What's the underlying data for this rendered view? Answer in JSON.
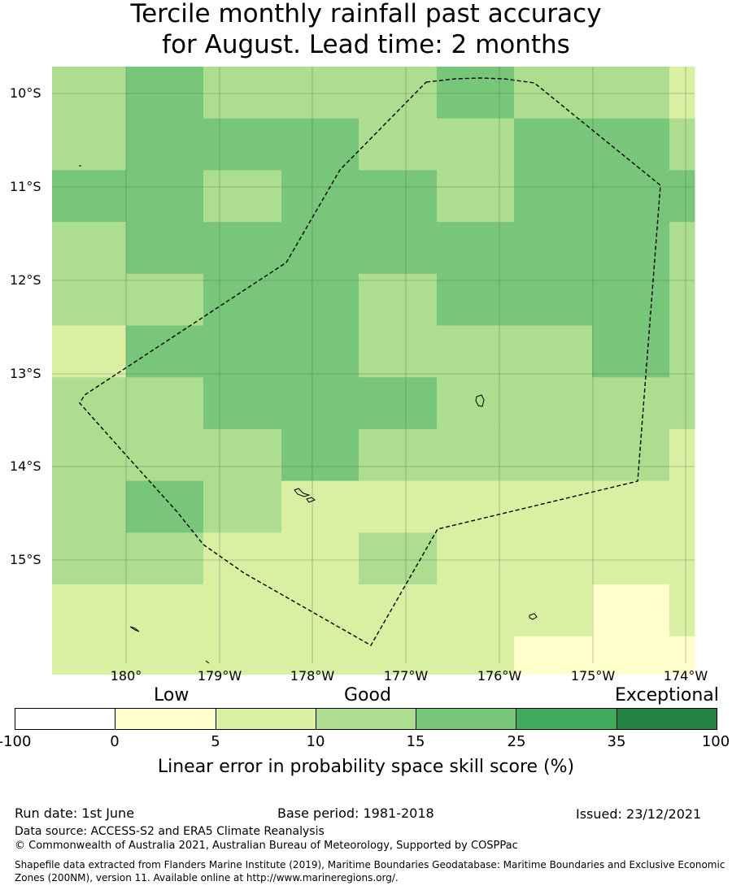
{
  "title": {
    "line1": "Tercile monthly rainfall past accuracy",
    "line2": "for August. Lead time: 2 months"
  },
  "map": {
    "lat_labels": [
      "10°S",
      "11°S",
      "12°S",
      "13°S",
      "14°S",
      "15°S"
    ],
    "lon_labels": [
      "180°",
      "179°W",
      "178°W",
      "177°W",
      "176°W",
      "175°W",
      "174°W"
    ],
    "boundary_style": "dashed",
    "grid_cells": [
      [
        "10-15",
        "15-25",
        "10-15",
        "10-15",
        "10-15",
        "15-25",
        "10-15",
        "10-15",
        "5-10"
      ],
      [
        "10-15",
        "15-25",
        "15-25",
        "15-25",
        "10-15",
        "10-15",
        "15-25",
        "15-25",
        "10-15"
      ],
      [
        "15-25",
        "15-25",
        "10-15",
        "15-25",
        "15-25",
        "10-15",
        "15-25",
        "15-25",
        "15-25"
      ],
      [
        "10-15",
        "15-25",
        "15-25",
        "15-25",
        "15-25",
        "15-25",
        "15-25",
        "15-25",
        "10-15"
      ],
      [
        "10-15",
        "10-15",
        "15-25",
        "15-25",
        "10-15",
        "15-25",
        "15-25",
        "15-25",
        "10-15"
      ],
      [
        "5-10",
        "15-25",
        "15-25",
        "15-25",
        "10-15",
        "10-15",
        "10-15",
        "15-25",
        "10-15"
      ],
      [
        "10-15",
        "10-15",
        "15-25",
        "15-25",
        "15-25",
        "10-15",
        "10-15",
        "10-15",
        "10-15"
      ],
      [
        "10-15",
        "10-15",
        "10-15",
        "15-25",
        "10-15",
        "10-15",
        "10-15",
        "10-15",
        "5-10"
      ],
      [
        "10-15",
        "15-25",
        "10-15",
        "5-10",
        "5-10",
        "5-10",
        "5-10",
        "5-10",
        "5-10"
      ],
      [
        "10-15",
        "10-15",
        "5-10",
        "5-10",
        "10-15",
        "5-10",
        "5-10",
        "5-10",
        "5-10"
      ],
      [
        "5-10",
        "5-10",
        "5-10",
        "5-10",
        "5-10",
        "5-10",
        "5-10",
        "0-5",
        "5-10"
      ],
      [
        "5-10",
        "5-10",
        "5-10",
        "5-10",
        "5-10",
        "5-10",
        "0-5",
        "0-5",
        "0-5"
      ]
    ]
  },
  "colorbar": {
    "words": [
      "Low",
      "Good",
      "Exceptional"
    ],
    "ticks": [
      "-100",
      "0",
      "5",
      "10",
      "15",
      "25",
      "35",
      "100"
    ],
    "bins": [
      {
        "range": "-100-0",
        "color": "#ffffff"
      },
      {
        "range": "0-5",
        "color": "#ffffcc"
      },
      {
        "range": "5-10",
        "color": "#d9f0a3"
      },
      {
        "range": "10-15",
        "color": "#addd8e"
      },
      {
        "range": "15-25",
        "color": "#78c679"
      },
      {
        "range": "25-35",
        "color": "#41ab5d"
      },
      {
        "range": "35-100",
        "color": "#238443"
      }
    ],
    "label": "Linear error in probability space skill score (%)"
  },
  "footer": {
    "run_date": "Run date: 1st June",
    "base_period": "Base period: 1981-2018",
    "issued": "Issued: 23/12/2021",
    "data_source": "Data source: ACCESS-S2 and ERA5 Climate Reanalysis",
    "copyright": "© Commonwealth of Australia 2021, Australian Bureau of Meteorology, Supported by COSPPac",
    "shapefile_line1": "Shapefile data extracted from Flanders Marine Institute (2019), Maritime Boundaries Geodatabase: Maritime Boundaries and Exclusive Economic",
    "shapefile_line2": "Zones (200NM), version 11. Available online at http://www.marineregions.org/."
  }
}
